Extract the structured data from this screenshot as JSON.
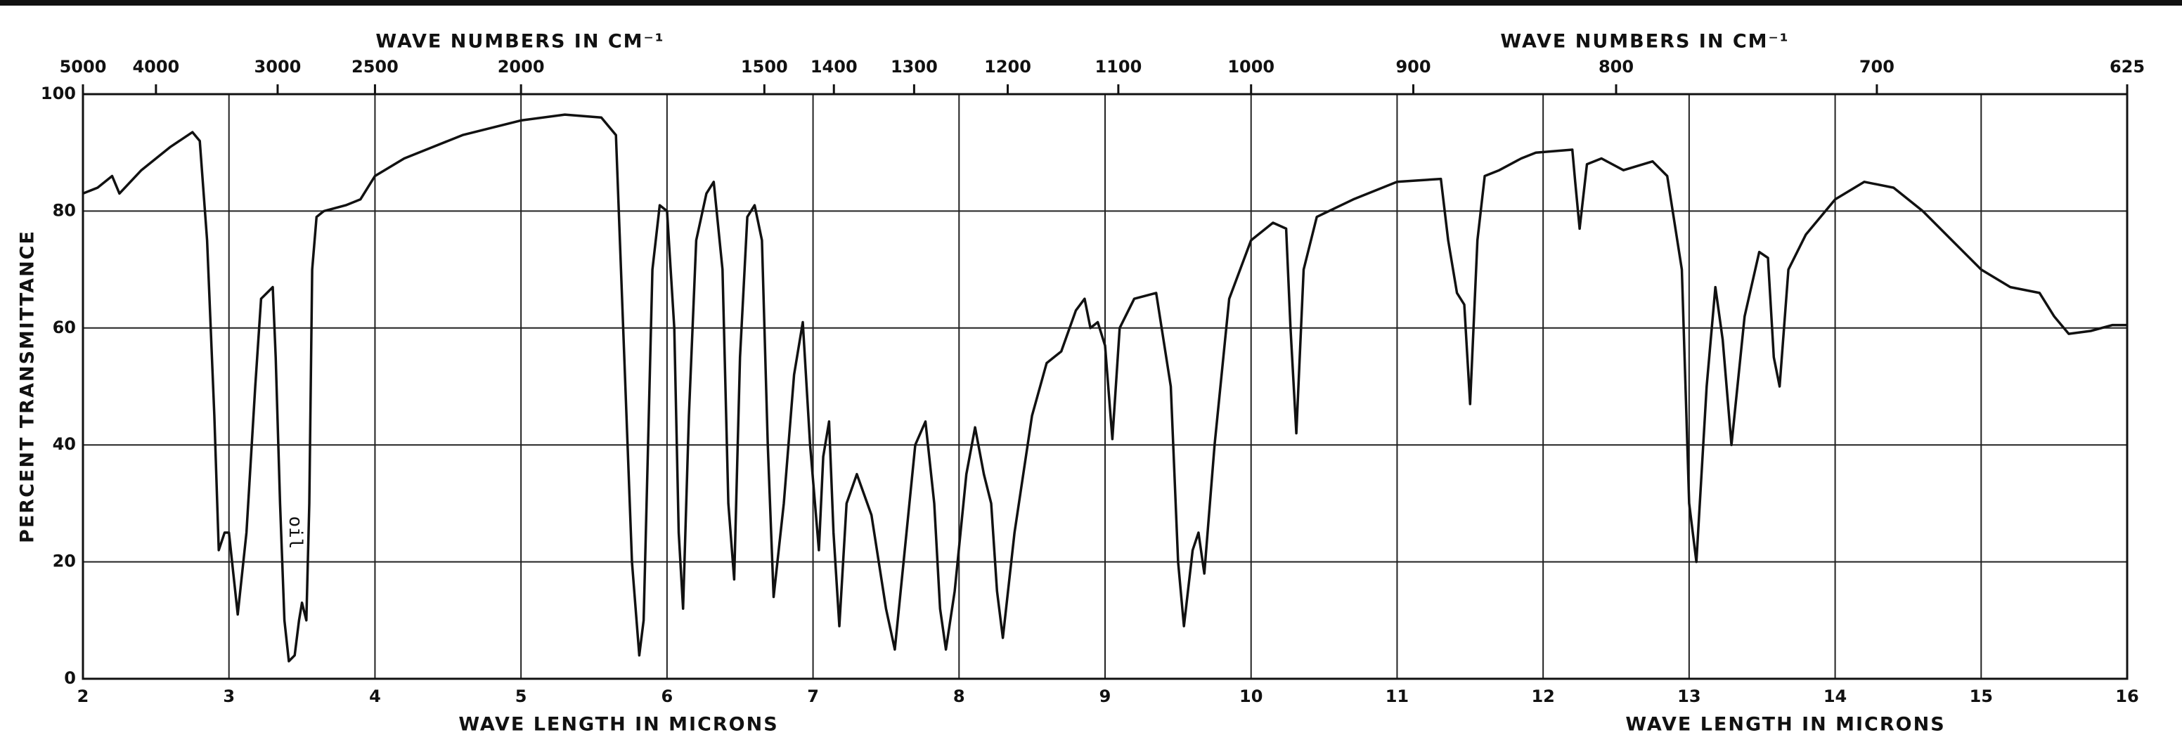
{
  "chart_data": {
    "type": "line",
    "x2label": [
      "WAVE NUMBERS IN CM⁻¹",
      "WAVE NUMBERS IN CM⁻¹"
    ],
    "xlabel": [
      "WAVE LENGTH IN MICRONS",
      "WAVE LENGTH IN MICRONS"
    ],
    "ylabel": "PERCENT TRANSMITTANCE",
    "annotation": "oil",
    "xlim": [
      2,
      16
    ],
    "xticks": [
      2,
      3,
      4,
      5,
      6,
      7,
      8,
      9,
      10,
      11,
      12,
      13,
      14,
      15,
      16
    ],
    "x2ticks": [
      5000,
      4000,
      3000,
      2500,
      2000,
      1500,
      1400,
      1300,
      1200,
      1100,
      1000,
      900,
      800,
      700,
      625
    ],
    "ylim": [
      0,
      100
    ],
    "yticks": [
      0,
      20,
      40,
      60,
      80,
      100
    ],
    "grid": true,
    "color": "#111111",
    "x": [
      2.0,
      2.1,
      2.2,
      2.25,
      2.4,
      2.6,
      2.75,
      2.8,
      2.85,
      2.9,
      2.93,
      2.97,
      3.0,
      3.03,
      3.06,
      3.12,
      3.18,
      3.22,
      3.3,
      3.32,
      3.35,
      3.38,
      3.41,
      3.45,
      3.48,
      3.5,
      3.53,
      3.55,
      3.57,
      3.6,
      3.65,
      3.8,
      3.9,
      4.0,
      4.2,
      4.4,
      4.6,
      5.0,
      5.3,
      5.55,
      5.65,
      5.7,
      5.76,
      5.81,
      5.84,
      5.87,
      5.9,
      5.95,
      6.0,
      6.05,
      6.08,
      6.11,
      6.15,
      6.2,
      6.27,
      6.32,
      6.38,
      6.42,
      6.46,
      6.5,
      6.55,
      6.6,
      6.65,
      6.69,
      6.73,
      6.8,
      6.87,
      6.93,
      6.98,
      7.04,
      7.07,
      7.11,
      7.14,
      7.18,
      7.23,
      7.3,
      7.4,
      7.5,
      7.56,
      7.62,
      7.7,
      7.77,
      7.83,
      7.87,
      7.91,
      7.97,
      8.05,
      8.11,
      8.17,
      8.22,
      8.26,
      8.3,
      8.38,
      8.5,
      8.6,
      8.7,
      8.8,
      8.86,
      8.9,
      8.95,
      9.0,
      9.05,
      9.1,
      9.2,
      9.35,
      9.45,
      9.5,
      9.54,
      9.6,
      9.64,
      9.68,
      9.75,
      9.85,
      10.0,
      10.15,
      10.24,
      10.27,
      10.31,
      10.36,
      10.45,
      10.7,
      11.0,
      11.3,
      11.35,
      11.41,
      11.46,
      11.5,
      11.55,
      11.6,
      11.7,
      11.85,
      11.95,
      12.2,
      12.22,
      12.25,
      12.3,
      12.4,
      12.55,
      12.75,
      12.85,
      12.95,
      13.0,
      13.05,
      13.12,
      13.18,
      13.23,
      13.29,
      13.38,
      13.48,
      13.54,
      13.58,
      13.62,
      13.68,
      13.8,
      14.0,
      14.2,
      14.4,
      14.6,
      14.8,
      15.0,
      15.2,
      15.4,
      15.5,
      15.6,
      15.75,
      15.9,
      16.0
    ],
    "values": [
      83,
      84,
      86,
      83,
      87,
      91,
      93.5,
      92,
      75,
      45,
      22,
      25,
      25,
      18,
      11,
      25,
      50,
      65,
      67,
      55,
      30,
      10,
      3,
      4,
      10,
      13,
      10,
      30,
      70,
      79,
      80,
      81,
      82,
      86,
      89,
      91,
      93,
      95.5,
      96.5,
      96,
      93,
      60,
      20,
      4,
      10,
      40,
      70,
      81,
      80,
      60,
      25,
      12,
      45,
      75,
      83,
      85,
      70,
      30,
      17,
      55,
      79,
      81,
      75,
      40,
      14,
      30,
      52,
      61,
      40,
      22,
      38,
      44,
      25,
      9,
      30,
      35,
      28,
      12,
      5,
      20,
      40,
      44,
      30,
      12,
      5,
      15,
      35,
      43,
      35,
      30,
      15,
      7,
      25,
      45,
      54,
      56,
      63,
      65,
      60,
      61,
      57,
      41,
      60,
      65,
      66,
      50,
      20,
      9,
      22,
      25,
      18,
      40,
      65,
      75,
      78,
      77,
      60,
      42,
      70,
      79,
      82,
      85,
      85.5,
      75,
      66,
      64,
      47,
      75,
      86,
      87,
      89,
      90,
      90.5,
      85,
      77,
      88,
      89,
      87,
      88.5,
      86,
      70,
      30,
      20,
      50,
      67,
      58,
      40,
      62,
      73,
      72,
      55,
      50,
      70,
      76,
      82,
      85,
      84,
      80,
      75,
      70,
      67,
      66,
      62,
      59,
      59.5,
      60.5,
      60.5
    ]
  }
}
